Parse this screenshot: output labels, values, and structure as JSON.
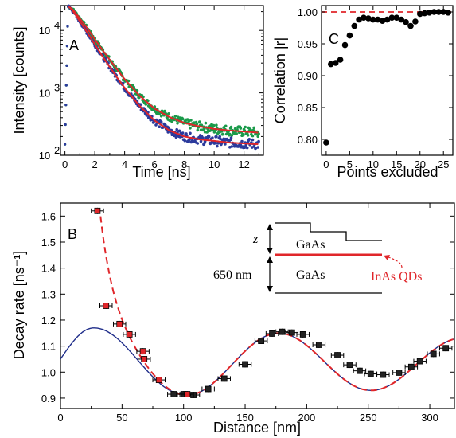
{
  "colors": {
    "green": "#1a9a4a",
    "blue": "#2b3a9c",
    "red": "#e0262a",
    "black": "#000000",
    "fit_blue": "#1f2d8a"
  },
  "chart_data": [
    {
      "panel": "A",
      "type": "scatter",
      "xlabel": "Time [ns]",
      "ylabel": "Intensity [counts]",
      "xlim": [
        -0.3,
        13.3
      ],
      "ylim": [
        100,
        25000
      ],
      "yscale": "log",
      "xticks": [
        "0",
        "2",
        "4",
        "6",
        "8",
        "10",
        "12"
      ],
      "yticks": [
        "10^2",
        "10^3",
        "10^4"
      ],
      "series": [
        {
          "color": "green",
          "curve": "decay",
          "peak": 24000,
          "peak_time": 0.25,
          "fit": "red",
          "x": [
            0.25,
            0.5,
            1,
            1.5,
            2,
            2.5,
            3,
            3.5,
            4,
            5,
            6,
            7,
            8,
            9,
            10,
            11,
            12,
            13
          ],
          "y": [
            24000,
            22000,
            15500,
            10800,
            7200,
            4900,
            3400,
            2350,
            1650,
            900,
            560,
            410,
            330,
            290,
            265,
            250,
            240,
            230
          ]
        },
        {
          "color": "blue",
          "curve": "decay",
          "peak": 24000,
          "peak_time": 0.25,
          "fit": "red",
          "x": [
            0.25,
            0.5,
            1,
            1.5,
            2,
            2.5,
            3,
            3.5,
            4,
            5,
            6,
            7,
            8,
            9,
            10,
            11,
            12,
            13
          ],
          "y": [
            24000,
            21000,
            14000,
            9200,
            6000,
            3900,
            2600,
            1750,
            1200,
            620,
            360,
            250,
            200,
            180,
            170,
            160,
            155,
            150
          ]
        }
      ]
    },
    {
      "panel": "C",
      "type": "scatter",
      "xlabel": "Points excluded",
      "ylabel": "Correlation |r|",
      "xlim": [
        -1,
        27
      ],
      "ylim": [
        0.775,
        1.01
      ],
      "xticks": [
        0,
        5,
        10,
        15,
        20,
        25
      ],
      "yticks": [
        "0.80",
        "0.85",
        "0.90",
        "0.95",
        "1.00"
      ],
      "reference_line": 1.0,
      "x": [
        0,
        1,
        2,
        3,
        4,
        5,
        6,
        7,
        8,
        9,
        10,
        11,
        12,
        13,
        14,
        15,
        16,
        17,
        18,
        19,
        20,
        21,
        22,
        23,
        24,
        25,
        26
      ],
      "y": [
        0.795,
        0.918,
        0.92,
        0.925,
        0.948,
        0.963,
        0.978,
        0.988,
        0.991,
        0.99,
        0.988,
        0.988,
        0.986,
        0.988,
        0.991,
        0.991,
        0.988,
        0.984,
        0.978,
        0.985,
        0.997,
        0.998,
        0.999,
        1.0,
        1.0,
        1.0,
        0.999
      ]
    },
    {
      "panel": "B",
      "type": "scatter",
      "xlabel": "Distance [nm]",
      "ylabel": "Decay rate [ns⁻¹]",
      "xlim": [
        0,
        320
      ],
      "ylim": [
        0.86,
        1.65
      ],
      "xticks": [
        0,
        50,
        100,
        150,
        200,
        250,
        300
      ],
      "yticks": [
        "0.9",
        "1.0",
        "1.1",
        "1.2",
        "1.3",
        "1.4",
        "1.5",
        "1.6"
      ],
      "red_points": {
        "x": [
          30,
          37,
          48,
          56,
          67,
          68,
          80,
          103
        ],
        "y": [
          1.62,
          1.255,
          1.185,
          1.145,
          1.08,
          1.05,
          0.97,
          0.915
        ],
        "xerr": 5,
        "yerr": 0.012
      },
      "black_points": {
        "x": [
          92,
          100,
          108,
          120,
          133,
          150,
          163,
          172,
          180,
          188,
          197,
          210,
          225,
          235,
          243,
          252,
          262,
          275,
          285,
          292,
          303,
          313
        ],
        "y": [
          0.915,
          0.915,
          0.912,
          0.935,
          0.975,
          1.03,
          1.12,
          1.148,
          1.155,
          1.152,
          1.145,
          1.105,
          1.065,
          1.028,
          1.005,
          0.993,
          0.99,
          0.998,
          1.02,
          1.042,
          1.07,
          1.092
        ],
        "xerr": 5,
        "yerr": 0.012
      },
      "fit_red_dashed": "model",
      "fit_blue_solid": "model"
    }
  ],
  "inset": {
    "z_label": "z",
    "thickness_label": "650 nm",
    "gaas_top": "GaAs",
    "gaas_bottom": "GaAs",
    "qd_label": "InAs QDs"
  },
  "panel_letters": {
    "a": "A",
    "b": "B",
    "c": "C"
  }
}
